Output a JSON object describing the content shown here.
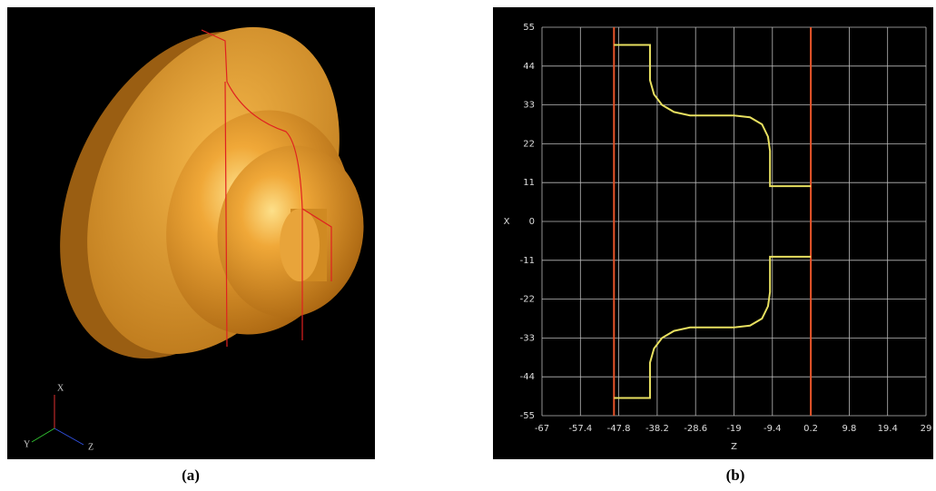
{
  "captions": [
    "(a)",
    "(b)"
  ],
  "triad": {
    "x": "X",
    "y": "Y",
    "z": "Z"
  },
  "chart_data": {
    "type": "line",
    "x_label": "Z",
    "y_label": "X",
    "xlim": [
      -67,
      29
    ],
    "xticks": [
      -67,
      -57.4,
      -47.8,
      -38.2,
      -28.6,
      -19,
      -9.4,
      0.2,
      9.8,
      19.4,
      29
    ],
    "ylim": [
      -55,
      55
    ],
    "yticks": [
      -55,
      -44,
      -33,
      -22,
      -11,
      0,
      11,
      22,
      33,
      44,
      55
    ],
    "grid": true,
    "vlines": [
      {
        "value": -49,
        "color": "#e8552a"
      },
      {
        "value": 0.2,
        "color": "#e8552a"
      }
    ],
    "series": [
      {
        "color": "#e8e060",
        "x": [
          -49,
          -40,
          -40,
          -39,
          -37,
          -34,
          -30,
          -19,
          -15,
          -12,
          -10.5,
          -10,
          -10,
          0.2
        ],
        "values": [
          50,
          50,
          40,
          36,
          33,
          31,
          30,
          30,
          29.5,
          27.5,
          24,
          20,
          10,
          10
        ]
      },
      {
        "color": "#e8e060",
        "x": [
          -49,
          -40,
          -40,
          -39,
          -37,
          -34,
          -30,
          -19,
          -15,
          -12,
          -10.5,
          -10,
          -10,
          0.2
        ],
        "values": [
          -50,
          -50,
          -40,
          -36,
          -33,
          -31,
          -30,
          -30,
          -29.5,
          -27.5,
          -24,
          -20,
          -10,
          -10
        ]
      }
    ]
  }
}
